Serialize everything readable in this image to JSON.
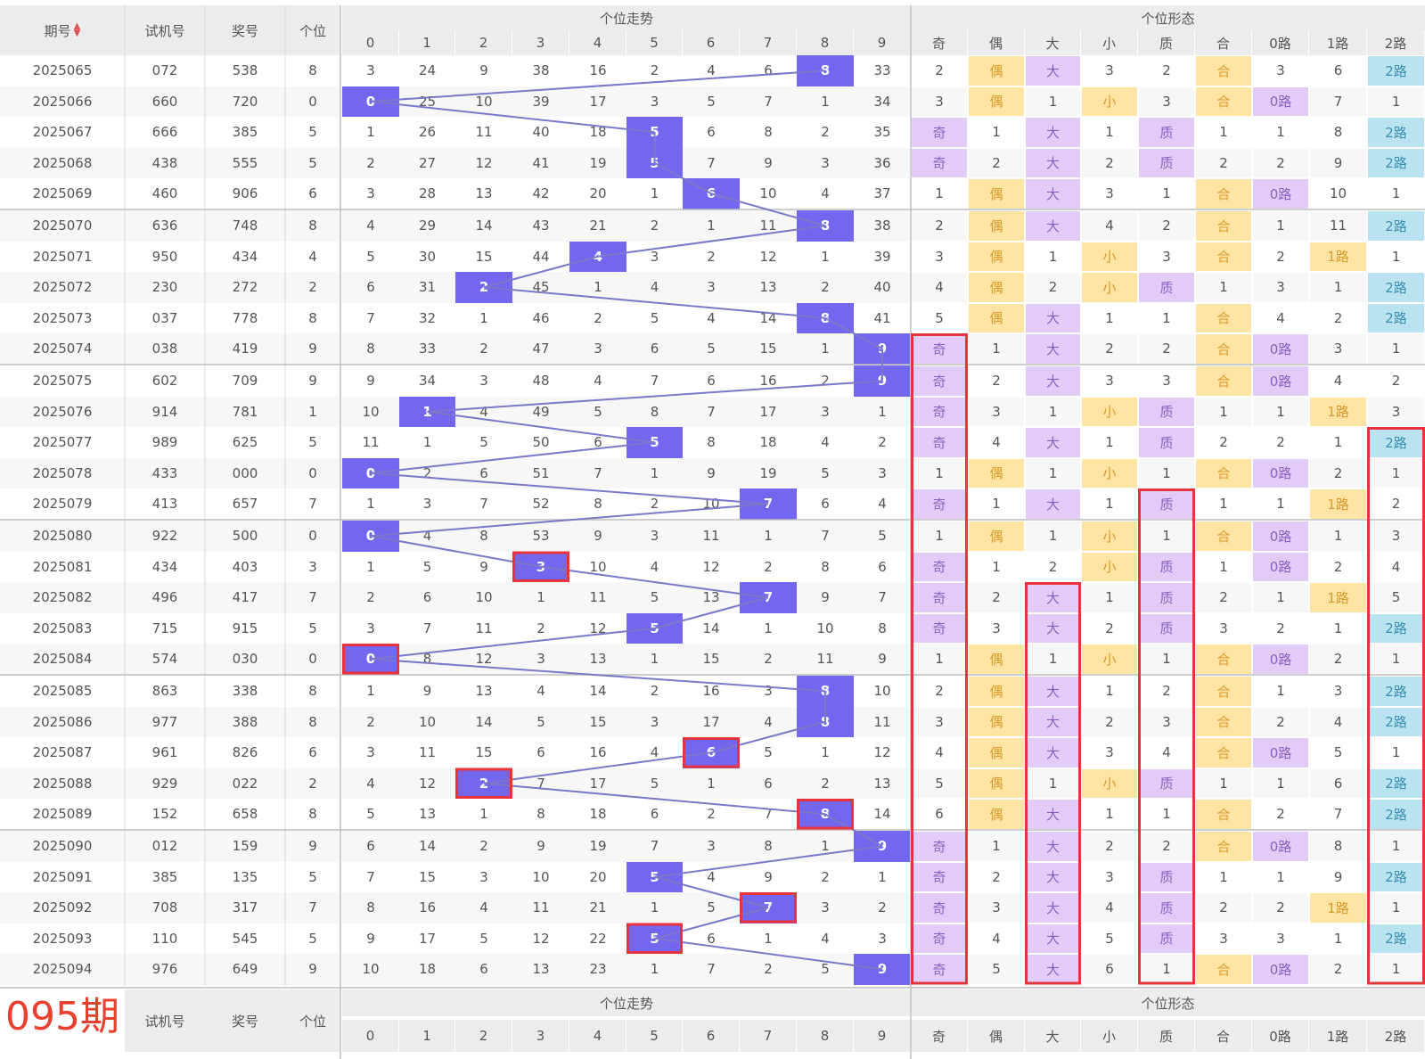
{
  "header": {
    "period": "期号",
    "trial": "试机号",
    "award": "奖号",
    "digit": "个位",
    "trend_group": "个位走势",
    "form_group": "个位形态",
    "digits": [
      "0",
      "1",
      "2",
      "3",
      "4",
      "5",
      "6",
      "7",
      "8",
      "9"
    ],
    "forms": [
      "奇",
      "偶",
      "大",
      "小",
      "质",
      "合",
      "0路",
      "1路",
      "2路"
    ]
  },
  "footer": {
    "period_label": "095期",
    "trial": "试机号",
    "award": "奖号",
    "digit": "个位",
    "trend_group": "个位走势",
    "form_group": "个位形态",
    "digits": [
      "0",
      "1",
      "2",
      "3",
      "4",
      "5",
      "6",
      "7",
      "8",
      "9"
    ],
    "forms": [
      "奇",
      "偶",
      "大",
      "小",
      "质",
      "合",
      "0路",
      "1路",
      "2路"
    ]
  },
  "colors": {
    "hit": "#7367f0",
    "odd": "#e2ccf7",
    "even": "#ffe4a3",
    "route2": "#b9e3f0",
    "line": "#7a78c9",
    "mark": "#e8333d"
  },
  "rows": [
    {
      "p": "2025065",
      "t": "072",
      "a": "538",
      "d": "8",
      "trend": [
        "3",
        "24",
        "9",
        "38",
        "16",
        "2",
        "4",
        "6",
        "8",
        "33"
      ],
      "form": [
        "2",
        "偶",
        "大",
        "3",
        "2",
        "合",
        "3",
        "6",
        "2路"
      ]
    },
    {
      "p": "2025066",
      "t": "660",
      "a": "720",
      "d": "0",
      "trend": [
        "0",
        "25",
        "10",
        "39",
        "17",
        "3",
        "5",
        "7",
        "1",
        "34"
      ],
      "form": [
        "3",
        "偶",
        "1",
        "小",
        "3",
        "合",
        "0路",
        "7",
        "1"
      ]
    },
    {
      "p": "2025067",
      "t": "666",
      "a": "385",
      "d": "5",
      "trend": [
        "1",
        "26",
        "11",
        "40",
        "18",
        "5",
        "6",
        "8",
        "2",
        "35"
      ],
      "form": [
        "奇",
        "1",
        "大",
        "1",
        "质",
        "1",
        "1",
        "8",
        "2路"
      ]
    },
    {
      "p": "2025068",
      "t": "438",
      "a": "555",
      "d": "5",
      "trend": [
        "2",
        "27",
        "12",
        "41",
        "19",
        "5",
        "7",
        "9",
        "3",
        "36"
      ],
      "form": [
        "奇",
        "2",
        "大",
        "2",
        "质",
        "2",
        "2",
        "9",
        "2路"
      ]
    },
    {
      "p": "2025069",
      "t": "460",
      "a": "906",
      "d": "6",
      "trend": [
        "3",
        "28",
        "13",
        "42",
        "20",
        "1",
        "6",
        "10",
        "4",
        "37"
      ],
      "form": [
        "1",
        "偶",
        "大",
        "3",
        "1",
        "合",
        "0路",
        "10",
        "1"
      ]
    },
    {
      "p": "2025070",
      "t": "636",
      "a": "748",
      "d": "8",
      "trend": [
        "4",
        "29",
        "14",
        "43",
        "21",
        "2",
        "1",
        "11",
        "8",
        "38"
      ],
      "form": [
        "2",
        "偶",
        "大",
        "4",
        "2",
        "合",
        "1",
        "11",
        "2路"
      ]
    },
    {
      "p": "2025071",
      "t": "950",
      "a": "434",
      "d": "4",
      "trend": [
        "5",
        "30",
        "15",
        "44",
        "4",
        "3",
        "2",
        "12",
        "1",
        "39"
      ],
      "form": [
        "3",
        "偶",
        "1",
        "小",
        "3",
        "合",
        "2",
        "1路",
        "1"
      ]
    },
    {
      "p": "2025072",
      "t": "230",
      "a": "272",
      "d": "2",
      "trend": [
        "6",
        "31",
        "2",
        "45",
        "1",
        "4",
        "3",
        "13",
        "2",
        "40"
      ],
      "form": [
        "4",
        "偶",
        "2",
        "小",
        "质",
        "1",
        "3",
        "1",
        "2路"
      ]
    },
    {
      "p": "2025073",
      "t": "037",
      "a": "778",
      "d": "8",
      "trend": [
        "7",
        "32",
        "1",
        "46",
        "2",
        "5",
        "4",
        "14",
        "8",
        "41"
      ],
      "form": [
        "5",
        "偶",
        "大",
        "1",
        "1",
        "合",
        "4",
        "2",
        "2路"
      ]
    },
    {
      "p": "2025074",
      "t": "038",
      "a": "419",
      "d": "9",
      "trend": [
        "8",
        "33",
        "2",
        "47",
        "3",
        "6",
        "5",
        "15",
        "1",
        "9"
      ],
      "form": [
        "奇",
        "1",
        "大",
        "2",
        "2",
        "合",
        "0路",
        "3",
        "1"
      ]
    },
    {
      "p": "2025075",
      "t": "602",
      "a": "709",
      "d": "9",
      "trend": [
        "9",
        "34",
        "3",
        "48",
        "4",
        "7",
        "6",
        "16",
        "2",
        "9"
      ],
      "form": [
        "奇",
        "2",
        "大",
        "3",
        "3",
        "合",
        "0路",
        "4",
        "2"
      ]
    },
    {
      "p": "2025076",
      "t": "914",
      "a": "781",
      "d": "1",
      "trend": [
        "10",
        "1",
        "4",
        "49",
        "5",
        "8",
        "7",
        "17",
        "3",
        "1"
      ],
      "form": [
        "奇",
        "3",
        "1",
        "小",
        "质",
        "1",
        "1",
        "1路",
        "3"
      ]
    },
    {
      "p": "2025077",
      "t": "989",
      "a": "625",
      "d": "5",
      "trend": [
        "11",
        "1",
        "5",
        "50",
        "6",
        "5",
        "8",
        "18",
        "4",
        "2"
      ],
      "form": [
        "奇",
        "4",
        "大",
        "1",
        "质",
        "2",
        "2",
        "1",
        "2路"
      ]
    },
    {
      "p": "2025078",
      "t": "433",
      "a": "000",
      "d": "0",
      "trend": [
        "0",
        "2",
        "6",
        "51",
        "7",
        "1",
        "9",
        "19",
        "5",
        "3"
      ],
      "form": [
        "1",
        "偶",
        "1",
        "小",
        "1",
        "合",
        "0路",
        "2",
        "1"
      ]
    },
    {
      "p": "2025079",
      "t": "413",
      "a": "657",
      "d": "7",
      "trend": [
        "1",
        "3",
        "7",
        "52",
        "8",
        "2",
        "10",
        "7",
        "6",
        "4"
      ],
      "form": [
        "奇",
        "1",
        "大",
        "1",
        "质",
        "1",
        "1",
        "1路",
        "2"
      ]
    },
    {
      "p": "2025080",
      "t": "922",
      "a": "500",
      "d": "0",
      "trend": [
        "0",
        "4",
        "8",
        "53",
        "9",
        "3",
        "11",
        "1",
        "7",
        "5"
      ],
      "form": [
        "1",
        "偶",
        "1",
        "小",
        "1",
        "合",
        "0路",
        "1",
        "3"
      ]
    },
    {
      "p": "2025081",
      "t": "434",
      "a": "403",
      "d": "3",
      "trend": [
        "1",
        "5",
        "9",
        "3",
        "10",
        "4",
        "12",
        "2",
        "8",
        "6"
      ],
      "form": [
        "奇",
        "1",
        "2",
        "小",
        "质",
        "1",
        "0路",
        "2",
        "4"
      ]
    },
    {
      "p": "2025082",
      "t": "496",
      "a": "417",
      "d": "7",
      "trend": [
        "2",
        "6",
        "10",
        "1",
        "11",
        "5",
        "13",
        "7",
        "9",
        "7"
      ],
      "form": [
        "奇",
        "2",
        "大",
        "1",
        "质",
        "2",
        "1",
        "1路",
        "5"
      ]
    },
    {
      "p": "2025083",
      "t": "715",
      "a": "915",
      "d": "5",
      "trend": [
        "3",
        "7",
        "11",
        "2",
        "12",
        "5",
        "14",
        "1",
        "10",
        "8"
      ],
      "form": [
        "奇",
        "3",
        "大",
        "2",
        "质",
        "3",
        "2",
        "1",
        "2路"
      ]
    },
    {
      "p": "2025084",
      "t": "574",
      "a": "030",
      "d": "0",
      "trend": [
        "0",
        "8",
        "12",
        "3",
        "13",
        "1",
        "15",
        "2",
        "11",
        "9"
      ],
      "form": [
        "1",
        "偶",
        "1",
        "小",
        "1",
        "合",
        "0路",
        "2",
        "1"
      ]
    },
    {
      "p": "2025085",
      "t": "863",
      "a": "338",
      "d": "8",
      "trend": [
        "1",
        "9",
        "13",
        "4",
        "14",
        "2",
        "16",
        "3",
        "8",
        "10"
      ],
      "form": [
        "2",
        "偶",
        "大",
        "1",
        "2",
        "合",
        "1",
        "3",
        "2路"
      ]
    },
    {
      "p": "2025086",
      "t": "977",
      "a": "388",
      "d": "8",
      "trend": [
        "2",
        "10",
        "14",
        "5",
        "15",
        "3",
        "17",
        "4",
        "8",
        "11"
      ],
      "form": [
        "3",
        "偶",
        "大",
        "2",
        "3",
        "合",
        "2",
        "4",
        "2路"
      ]
    },
    {
      "p": "2025087",
      "t": "961",
      "a": "826",
      "d": "6",
      "trend": [
        "3",
        "11",
        "15",
        "6",
        "16",
        "4",
        "6",
        "5",
        "1",
        "12"
      ],
      "form": [
        "4",
        "偶",
        "大",
        "3",
        "4",
        "合",
        "0路",
        "5",
        "1"
      ]
    },
    {
      "p": "2025088",
      "t": "929",
      "a": "022",
      "d": "2",
      "trend": [
        "4",
        "12",
        "2",
        "7",
        "17",
        "5",
        "1",
        "6",
        "2",
        "13"
      ],
      "form": [
        "5",
        "偶",
        "1",
        "小",
        "质",
        "1",
        "1",
        "6",
        "2路"
      ]
    },
    {
      "p": "2025089",
      "t": "152",
      "a": "658",
      "d": "8",
      "trend": [
        "5",
        "13",
        "1",
        "8",
        "18",
        "6",
        "2",
        "7",
        "8",
        "14"
      ],
      "form": [
        "6",
        "偶",
        "大",
        "1",
        "1",
        "合",
        "2",
        "7",
        "2路"
      ]
    },
    {
      "p": "2025090",
      "t": "012",
      "a": "159",
      "d": "9",
      "trend": [
        "6",
        "14",
        "2",
        "9",
        "19",
        "7",
        "3",
        "8",
        "1",
        "9"
      ],
      "form": [
        "奇",
        "1",
        "大",
        "2",
        "2",
        "合",
        "0路",
        "8",
        "1"
      ]
    },
    {
      "p": "2025091",
      "t": "385",
      "a": "135",
      "d": "5",
      "trend": [
        "7",
        "15",
        "3",
        "10",
        "20",
        "5",
        "4",
        "9",
        "2",
        "1"
      ],
      "form": [
        "奇",
        "2",
        "大",
        "3",
        "质",
        "1",
        "1",
        "9",
        "2路"
      ]
    },
    {
      "p": "2025092",
      "t": "708",
      "a": "317",
      "d": "7",
      "trend": [
        "8",
        "16",
        "4",
        "11",
        "21",
        "1",
        "5",
        "7",
        "3",
        "2"
      ],
      "form": [
        "奇",
        "3",
        "大",
        "4",
        "质",
        "2",
        "2",
        "1路",
        "1"
      ]
    },
    {
      "p": "2025093",
      "t": "110",
      "a": "545",
      "d": "5",
      "trend": [
        "9",
        "17",
        "5",
        "12",
        "22",
        "5",
        "6",
        "1",
        "4",
        "3"
      ],
      "form": [
        "奇",
        "4",
        "大",
        "5",
        "质",
        "3",
        "3",
        "1",
        "2路"
      ]
    },
    {
      "p": "2025094",
      "t": "976",
      "a": "649",
      "d": "9",
      "trend": [
        "10",
        "18",
        "6",
        "13",
        "23",
        "1",
        "7",
        "2",
        "5",
        "9"
      ],
      "form": [
        "奇",
        "5",
        "大",
        "6",
        "1",
        "合",
        "0路",
        "2",
        "1"
      ]
    }
  ]
}
